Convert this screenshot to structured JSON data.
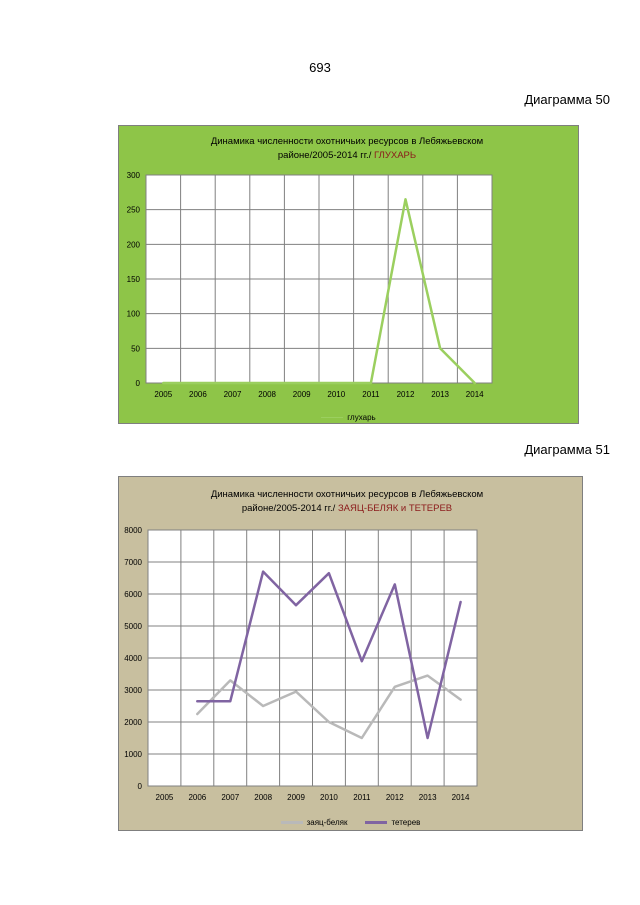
{
  "page": {
    "number": "693",
    "diagram_50_label": "Диаграмма 50",
    "diagram_51_label": "Диаграмма 51"
  },
  "chart_data": [
    {
      "type": "line",
      "title_line1": "Динамика численности охотничьих ресурсов  в  Лебяжьевском",
      "title_line2": "районе/2005-2014 гг./",
      "title_highlight": "ГЛУХАРЬ",
      "categories": [
        "2005",
        "2006",
        "2007",
        "2008",
        "2009",
        "2010",
        "2011",
        "2012",
        "2013",
        "2014"
      ],
      "ylim": [
        0,
        300
      ],
      "yticks": [
        0,
        50,
        100,
        150,
        200,
        250,
        300
      ],
      "grid": true,
      "legend_position": "bottom",
      "background_color": "#8ec548",
      "series": [
        {
          "name": "глухарь",
          "color": "#9bcf5f",
          "values": [
            0,
            0,
            0,
            0,
            0,
            0,
            0,
            265,
            50,
            0
          ]
        }
      ]
    },
    {
      "type": "line",
      "title_line1": "Динамика численности  охотничьих ресурсов   в  Лебяжьевском",
      "title_line2": "районе/2005-2014  гг./",
      "title_highlight": "ЗАЯЦ-БЕЛЯК и ТЕТЕРЕВ",
      "categories": [
        "2005",
        "2006",
        "2007",
        "2008",
        "2009",
        "2010",
        "2011",
        "2012",
        "2013",
        "2014"
      ],
      "ylim": [
        0,
        8000
      ],
      "yticks": [
        0,
        1000,
        2000,
        3000,
        4000,
        5000,
        6000,
        7000,
        8000
      ],
      "grid": true,
      "legend_position": "bottom",
      "background_color": "#c8bf9f",
      "series": [
        {
          "name": "заяц-беляк",
          "color": "#b9b9b9",
          "values": [
            null,
            2250,
            3300,
            2500,
            2950,
            2000,
            1500,
            3100,
            3450,
            2700
          ]
        },
        {
          "name": "тетерев",
          "color": "#8064a2",
          "values": [
            null,
            2650,
            2650,
            6700,
            5650,
            6650,
            3900,
            6300,
            1500,
            5750
          ]
        }
      ]
    }
  ]
}
